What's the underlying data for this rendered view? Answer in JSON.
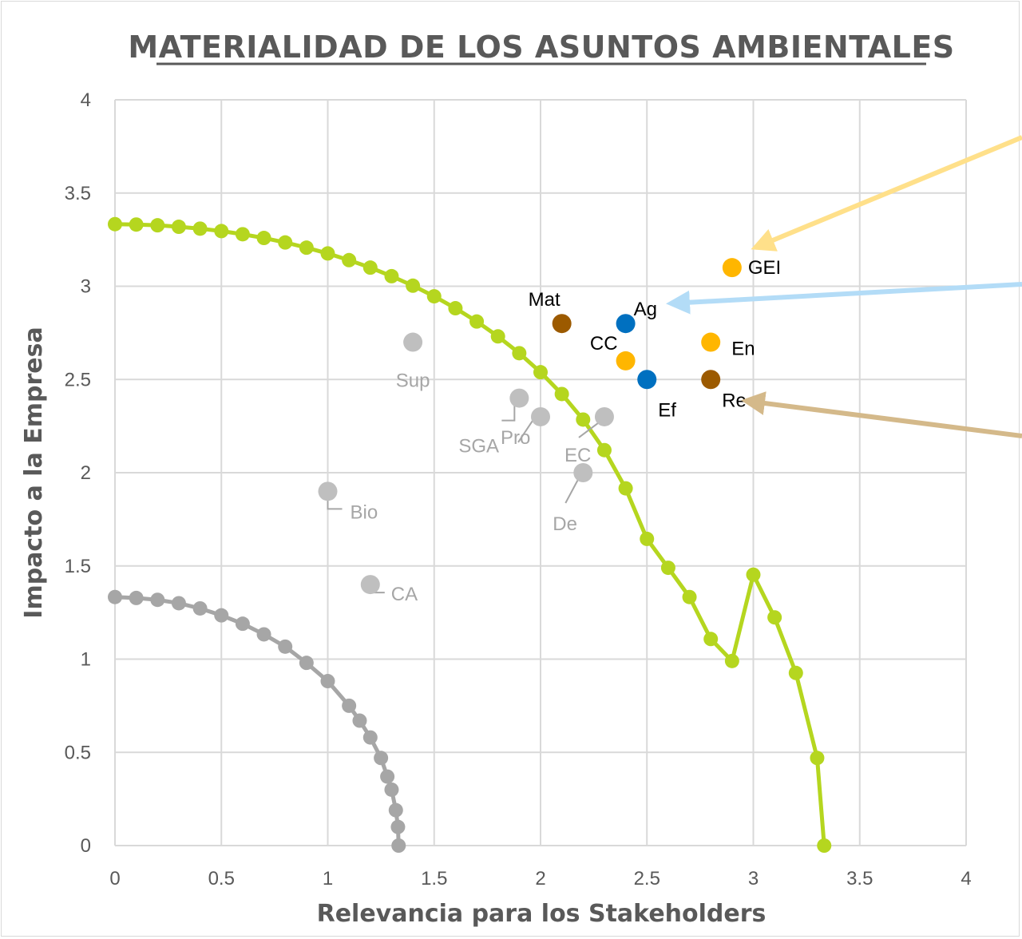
{
  "colors": {
    "grid": "#d9d9d9",
    "green_curve": "#b5d61f",
    "grey_curve": "#a6a6a6",
    "orange": "#ffb600",
    "blue": "#0070c0",
    "brown": "#9c5a00",
    "grey_point": "#bfbfbf",
    "arrow_yellow": "#ffe08a",
    "arrow_blue": "#b3dcf7",
    "arrow_tan": "#d4b98a"
  },
  "chart_data": {
    "type": "scatter",
    "title": "MATERIALIDAD DE LOS ASUNTOS AMBIENTALES",
    "xlabel": "Relevancia para los Stakeholders",
    "ylabel": "Impacto a la Empresa",
    "xlim": [
      0,
      4
    ],
    "ylim": [
      0,
      4
    ],
    "x_ticks": [
      "0",
      "0.5",
      "1",
      "1.5",
      "2",
      "2.5",
      "3",
      "3.5",
      "4"
    ],
    "y_ticks": [
      "0",
      "0.5",
      "1",
      "1.5",
      "2",
      "2.5",
      "3",
      "3.5",
      "4"
    ],
    "grid": true,
    "curves": [
      {
        "color": "green",
        "x": [
          0,
          0.1,
          0.2,
          0.3,
          0.4,
          0.5,
          0.6,
          0.7,
          0.8,
          0.9,
          1.0,
          1.1,
          1.2,
          1.3,
          1.4,
          1.5,
          1.6,
          1.7,
          1.8,
          1.9,
          2.0,
          2.1,
          2.2,
          2.3,
          2.4,
          2.5,
          2.6,
          2.7,
          2.8,
          2.9,
          3.0,
          3.1,
          3.2,
          3.3,
          3.333
        ],
        "y": [
          3.333,
          3.331,
          3.327,
          3.319,
          3.309,
          3.296,
          3.279,
          3.259,
          3.235,
          3.207,
          3.176,
          3.14,
          3.1,
          3.054,
          3.003,
          2.946,
          2.882,
          2.811,
          2.731,
          2.641,
          2.539,
          2.422,
          2.285,
          2.121,
          1.916,
          1.645,
          1.49,
          1.333,
          1.108,
          0.99,
          1.453,
          1.224,
          0.926,
          0.47,
          0.0
        ]
      },
      {
        "color": "grey",
        "x": [
          0,
          0.1,
          0.2,
          0.3,
          0.4,
          0.5,
          0.6,
          0.7,
          0.8,
          0.9,
          1.0,
          1.1,
          1.15,
          1.2,
          1.25,
          1.28,
          1.3,
          1.32,
          1.33,
          1.333
        ],
        "y": [
          1.333,
          1.328,
          1.318,
          1.3,
          1.272,
          1.235,
          1.19,
          1.133,
          1.067,
          0.98,
          0.882,
          0.75,
          0.67,
          0.58,
          0.47,
          0.37,
          0.3,
          0.19,
          0.1,
          0.0
        ]
      }
    ],
    "points": [
      {
        "label": "GEI",
        "x": 2.9,
        "y": 3.1,
        "color": "orange"
      },
      {
        "label": "En",
        "x": 2.8,
        "y": 2.7,
        "color": "orange"
      },
      {
        "label": "CC",
        "x": 2.4,
        "y": 2.6,
        "color": "orange"
      },
      {
        "label": "Ag",
        "x": 2.4,
        "y": 2.8,
        "color": "blue"
      },
      {
        "label": "Ef",
        "x": 2.5,
        "y": 2.5,
        "color": "blue"
      },
      {
        "label": "Mat",
        "x": 2.1,
        "y": 2.8,
        "color": "brown"
      },
      {
        "label": "Re",
        "x": 2.8,
        "y": 2.5,
        "color": "brown"
      },
      {
        "label": "Sup",
        "x": 1.4,
        "y": 2.7,
        "color": "grey_point"
      },
      {
        "label": "SGA",
        "x": 1.9,
        "y": 2.4,
        "color": "grey_point"
      },
      {
        "label": "Pro",
        "x": 2.0,
        "y": 2.3,
        "color": "grey_point"
      },
      {
        "label": "EC",
        "x": 2.3,
        "y": 2.3,
        "color": "grey_point"
      },
      {
        "label": "De",
        "x": 2.2,
        "y": 2.0,
        "color": "grey_point"
      },
      {
        "label": "Bio",
        "x": 1.0,
        "y": 1.9,
        "color": "grey_point"
      },
      {
        "label": "CA",
        "x": 1.2,
        "y": 1.4,
        "color": "grey_point"
      }
    ]
  }
}
